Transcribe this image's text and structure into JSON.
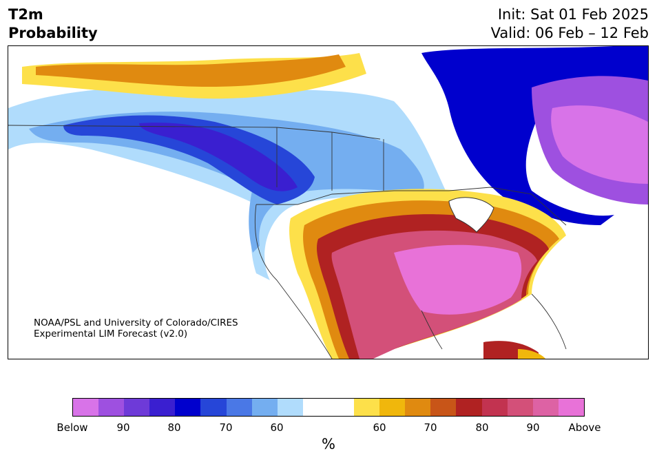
{
  "title": {
    "line1": "T2m",
    "line2": "Probability"
  },
  "dates": {
    "init": "Init: Sat 01 Feb 2025",
    "valid": "Valid: 06 Feb – 12 Feb"
  },
  "credit": {
    "line1": "NOAA/PSL and University of Colorado/CIRES",
    "line2": "Experimental LIM Forecast (v2.0)"
  },
  "colorbar": {
    "unit": "%",
    "colors": [
      "#d873e8",
      "#9e50e0",
      "#6e3ad8",
      "#3a1fd0",
      "#0000cd",
      "#2646d8",
      "#4a78e6",
      "#74aef0",
      "#b0dcfc",
      "#ffffff",
      "#ffffff",
      "#fde04a",
      "#f0b70c",
      "#e08a10",
      "#c85518",
      "#b02222",
      "#c23350",
      "#d35079",
      "#dd62a4",
      "#e872d8"
    ],
    "tick_labels": [
      "Below",
      "90",
      "80",
      "70",
      "60",
      "60",
      "70",
      "80",
      "90",
      "Above"
    ]
  }
}
